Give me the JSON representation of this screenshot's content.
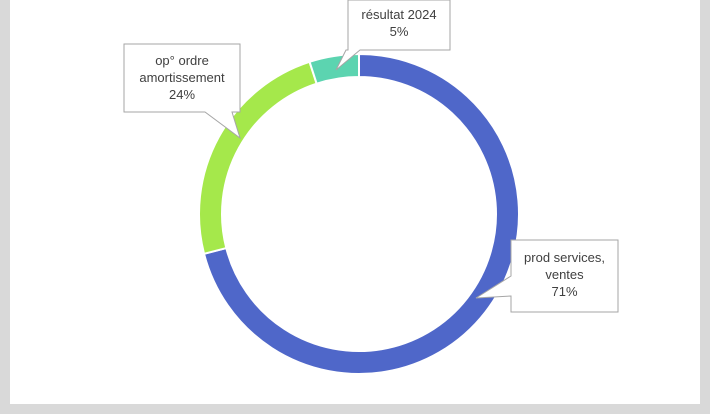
{
  "chart_data": {
    "type": "donut",
    "categories": [
      "prod services, ventes",
      "op° ordre amortissement",
      "résultat 2024"
    ],
    "values": [
      71,
      24,
      5
    ],
    "value_labels": [
      "71%",
      "24%",
      "5%"
    ],
    "colors": [
      "#4f67c9",
      "#a5e84b",
      "#5cd4b0"
    ]
  }
}
